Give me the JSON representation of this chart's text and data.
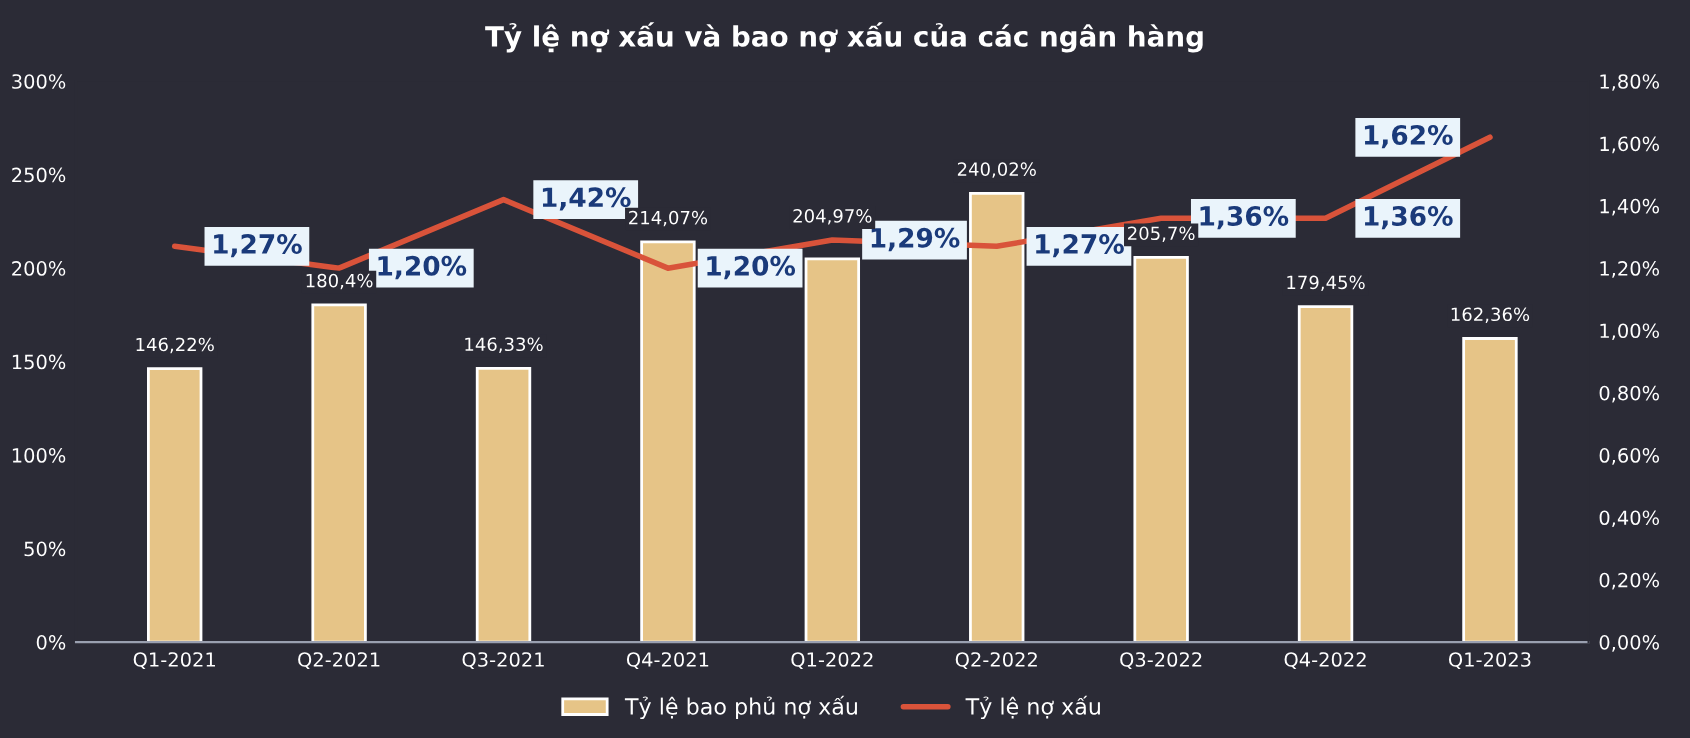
{
  "chart_data": {
    "type": "bar",
    "title": "Tỷ lệ nợ xấu và bao nợ xấu của các ngân hàng",
    "categories": [
      "Q1-2021",
      "Q2-2021",
      "Q3-2021",
      "Q4-2021",
      "Q1-2022",
      "Q2-2022",
      "Q3-2022",
      "Q4-2022",
      "Q1-2023"
    ],
    "series": [
      {
        "name": "Tỷ lệ bao phủ nợ xấu",
        "color": "#e6c487",
        "values": [
          146.22,
          180.4,
          146.33,
          214.07,
          204.97,
          240.02,
          205.7,
          179.45,
          162.36
        ],
        "value_labels": [
          "146,22%",
          "180,4%",
          "146,33%",
          "214,07%",
          "204,97%",
          "240,02%",
          "205,7%",
          "179,45%",
          "162,36%"
        ]
      },
      {
        "name": "Tỷ lệ nợ xấu",
        "type": "line",
        "axis": "y2",
        "color": "#d9533a",
        "values": [
          1.27,
          1.2,
          1.42,
          1.2,
          1.29,
          1.27,
          1.36,
          1.36,
          1.62
        ],
        "value_labels": [
          "1,27%",
          "1,20%",
          "1,42%",
          "1,20%",
          "1,29%",
          "1,27%",
          "1,36%",
          "1,36%",
          "1,62%"
        ]
      }
    ],
    "ylim": [
      0,
      300
    ],
    "yticks": [
      {
        "value": 0,
        "label": "0%"
      },
      {
        "value": 50,
        "label": "50%"
      },
      {
        "value": 100,
        "label": "100%"
      },
      {
        "value": 150,
        "label": "150%"
      },
      {
        "value": 200,
        "label": "200%"
      },
      {
        "value": 250,
        "label": "250%"
      },
      {
        "value": 300,
        "label": "300%"
      }
    ],
    "y2lim": [
      0,
      1.8
    ],
    "y2ticks": [
      {
        "value": 0,
        "label": "0,00%"
      },
      {
        "value": 0.2,
        "label": "0,20%"
      },
      {
        "value": 0.4,
        "label": "0,40%"
      },
      {
        "value": 0.6,
        "label": "0,60%"
      },
      {
        "value": 0.8,
        "label": "0,80%"
      },
      {
        "value": 1.0,
        "label": "1,00%"
      },
      {
        "value": 1.2,
        "label": "1,20%"
      },
      {
        "value": 1.4,
        "label": "1,40%"
      },
      {
        "value": 1.6,
        "label": "1,60%"
      },
      {
        "value": 1.8,
        "label": "1,80%"
      }
    ],
    "grid": false,
    "legend": "bottom"
  }
}
